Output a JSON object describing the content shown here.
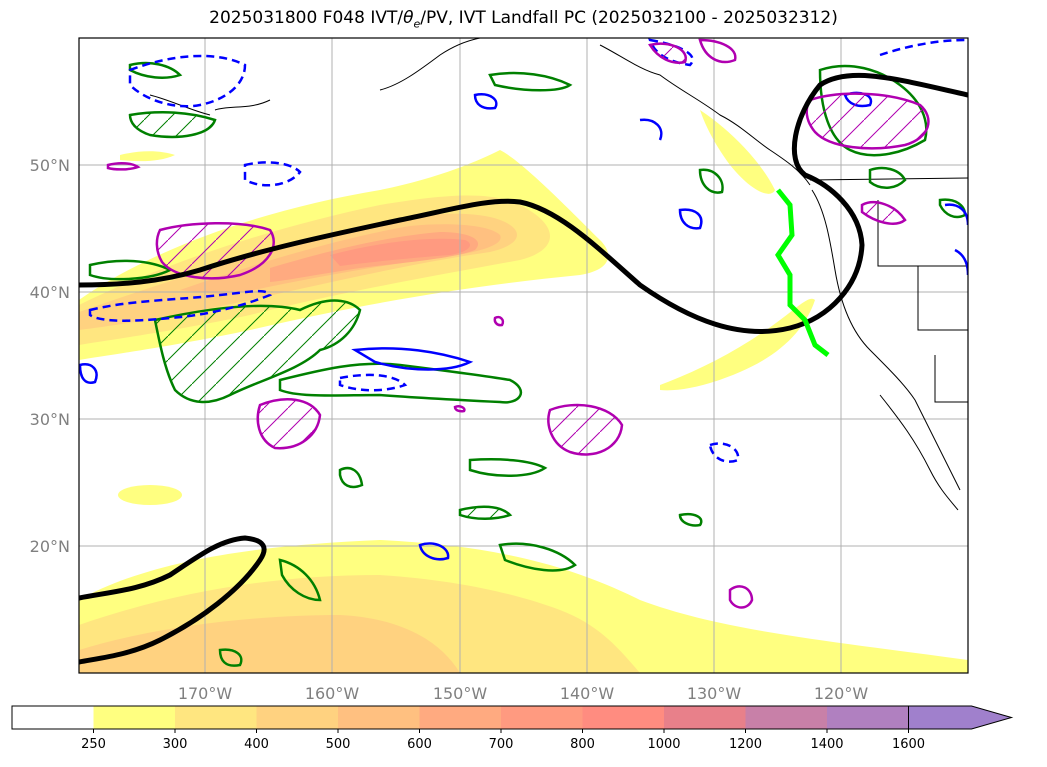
{
  "title": {
    "prefix": "2025031800 F048 IVT/",
    "theta": "θ",
    "theta_sub": "e",
    "suffix": "/PV, IVT Landfall PC (2025032100 - 2025032312)"
  },
  "map": {
    "lon_labels": [
      "170°W",
      "160°W",
      "150°W",
      "140°W",
      "130°W",
      "120°W"
    ],
    "lat_labels": [
      "50°N",
      "40°N",
      "30°N",
      "20°N"
    ],
    "lon_values": [
      -170,
      -160,
      -150,
      -140,
      -130,
      -120
    ],
    "lat_values": [
      50,
      40,
      30,
      20
    ],
    "extent": {
      "lon_min": -180,
      "lon_max": -110,
      "lat_min": 10,
      "lat_max": 60
    }
  },
  "colorbar": {
    "levels": [
      "250",
      "300",
      "400",
      "500",
      "600",
      "700",
      "800",
      "1000",
      "1200",
      "1400",
      "1600"
    ],
    "colors": [
      "#ffffff",
      "#ffff80",
      "#ffe680",
      "#ffd280",
      "#ffc080",
      "#ffaa80",
      "#ff9a80",
      "#ff8c80",
      "#e8808a",
      "#c880a8",
      "#b080c0",
      "#a080cc"
    ],
    "extend": "max"
  },
  "colors": {
    "ivt_fill": "#ffe680",
    "theta_e": "#008000",
    "pv_positive": "#0000ff",
    "pv_negative": "#0000ff",
    "highlight_contour": "#b000b0",
    "landfall_line": "#00ff00",
    "jet_contour": "#000000"
  }
}
